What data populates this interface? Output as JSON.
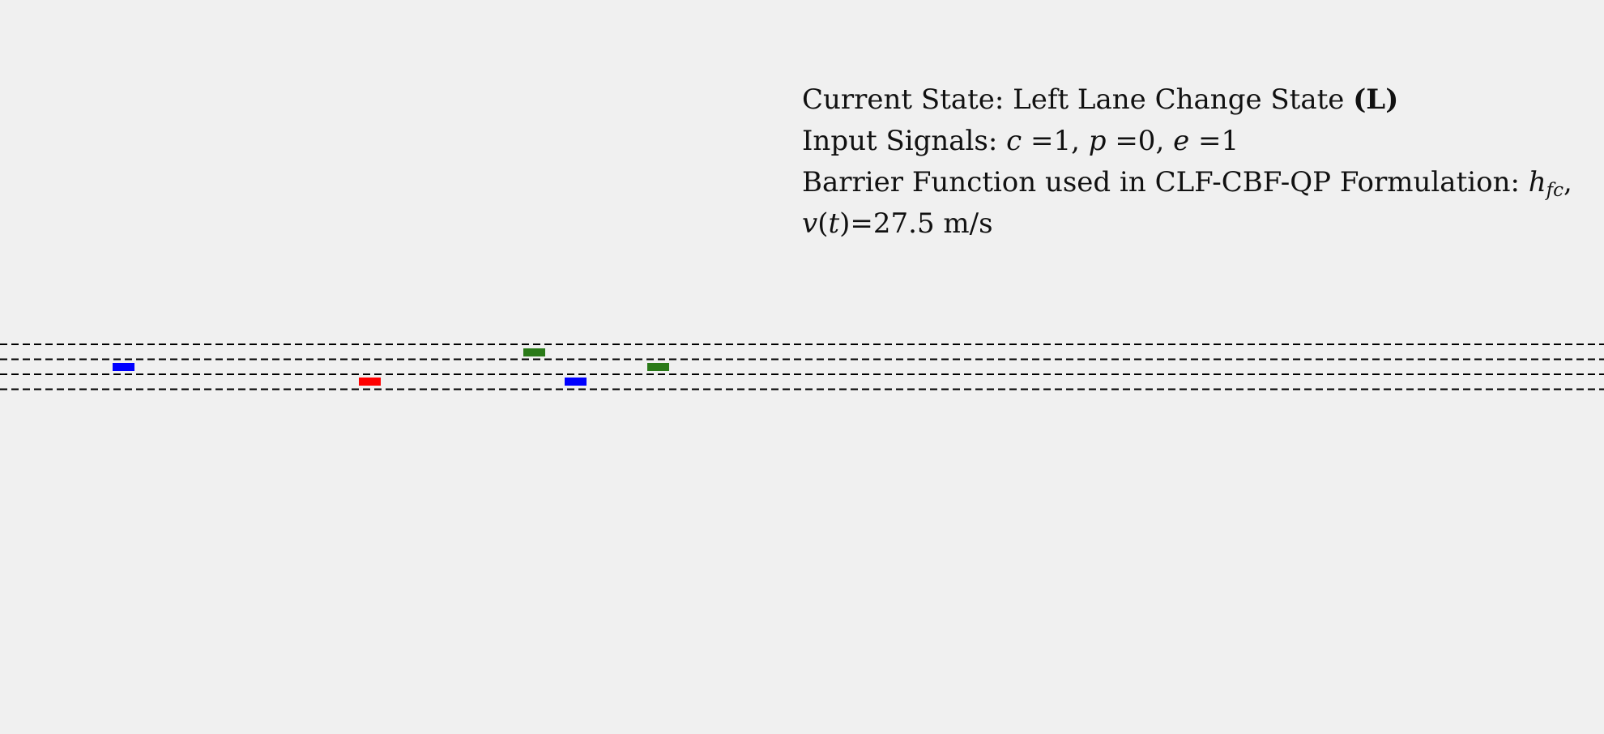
{
  "state_line": {
    "prefix": "Current State: Left Lane Change State ",
    "code": "(L)"
  },
  "signals_line": {
    "prefix": "Input Signals: ",
    "c_var": "c",
    "c_eq": " =1, ",
    "p_var": "p",
    "p_eq": " =0, ",
    "e_var": "e",
    "e_eq": " =1"
  },
  "barrier_line": {
    "prefix": "Barrier Function used in CLF-CBF-QP Formulation: ",
    "h_var": "h",
    "h_sub": "fc",
    "suffix": ","
  },
  "velocity_line": {
    "v_var": "v",
    "paren_open": "(",
    "t_var": "t",
    "value": ")=27.5 m/s"
  },
  "colors": {
    "background": "#f0f0f0",
    "lane_marking": "#000000",
    "vehicle_blue": "#0000ff",
    "vehicle_red": "#ff0000",
    "vehicle_green": "#2a7a18"
  }
}
